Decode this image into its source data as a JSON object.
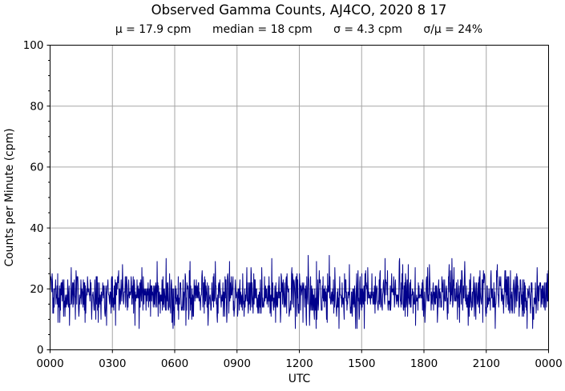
{
  "chart_data": {
    "type": "line",
    "title": "Observed Gamma Counts, AJ4CO, 2020 8 17",
    "subtitle": "μ = 17.9 cpm      median = 18 cpm      σ = 4.3 cpm      σ/μ = 24%",
    "stats": {
      "mean_cpm": 17.9,
      "median_cpm": 18,
      "sigma_cpm": 4.3,
      "sigma_over_mu_pct": 24
    },
    "xlabel": "UTC",
    "ylabel": "Counts per Minute (cpm)",
    "xlim_minutes": [
      0,
      1440
    ],
    "ylim": [
      0,
      100
    ],
    "x_tick_minutes": [
      0,
      180,
      360,
      540,
      720,
      900,
      1080,
      1260,
      1440
    ],
    "x_tick_labels": [
      "0000",
      "0300",
      "0600",
      "0900",
      "1200",
      "1500",
      "1800",
      "2100",
      "0000"
    ],
    "y_ticks": [
      0,
      20,
      40,
      60,
      80,
      100
    ],
    "y_tick_labels": [
      "0",
      "20",
      "40",
      "60",
      "80",
      "100"
    ],
    "y_minor_step": 5,
    "grid": true,
    "legend": "none",
    "colors": {
      "line": "#00008B",
      "grid": "#a6a6a6",
      "axis": "#000000",
      "background": "#ffffff"
    },
    "series": [
      {
        "name": "observed-gamma-counts",
        "points_per_day": 1440,
        "mean": 17.9,
        "sigma": 4.3,
        "min": 7,
        "max": 31,
        "integer_counts": true,
        "seed": 20200817
      }
    ]
  }
}
